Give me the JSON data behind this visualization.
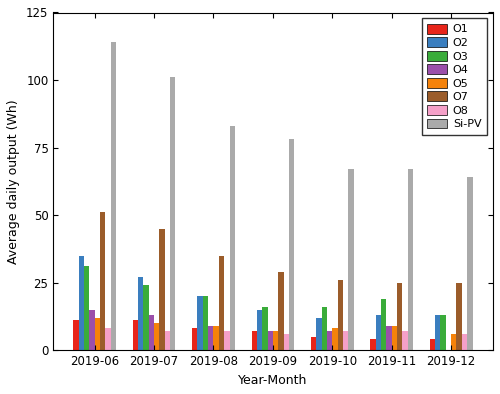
{
  "months": [
    "2019-06",
    "2019-07",
    "2019-08",
    "2019-09",
    "2019-10",
    "2019-11",
    "2019-12"
  ],
  "series": {
    "O1": [
      11,
      11,
      8,
      7,
      5,
      4,
      4
    ],
    "O2": [
      35,
      27,
      20,
      15,
      12,
      13,
      13
    ],
    "O3": [
      31,
      24,
      20,
      16,
      16,
      19,
      13
    ],
    "O4": [
      15,
      13,
      9,
      7,
      7,
      9,
      0
    ],
    "O5": [
      12,
      10,
      9,
      7,
      8,
      9,
      6
    ],
    "O7": [
      51,
      45,
      35,
      29,
      26,
      25,
      25
    ],
    "O8": [
      8,
      7,
      7,
      6,
      7,
      7,
      6
    ],
    "Si-PV": [
      114,
      101,
      83,
      78,
      67,
      67,
      64
    ]
  },
  "colors": {
    "O1": "#e8251a",
    "O2": "#3a7ebf",
    "O3": "#3aac3a",
    "O4": "#9b4faa",
    "O5": "#f5820a",
    "O7": "#9b5c2a",
    "O8": "#f5a0c8",
    "Si-PV": "#aaaaaa"
  },
  "ylabel": "Average daily output (Wh)",
  "xlabel": "Year-Month",
  "ylim": [
    0,
    125
  ],
  "yticks": [
    0,
    25,
    50,
    75,
    100,
    125
  ],
  "figsize": [
    5.0,
    3.94
  ],
  "dpi": 100,
  "bar_width": 0.09
}
